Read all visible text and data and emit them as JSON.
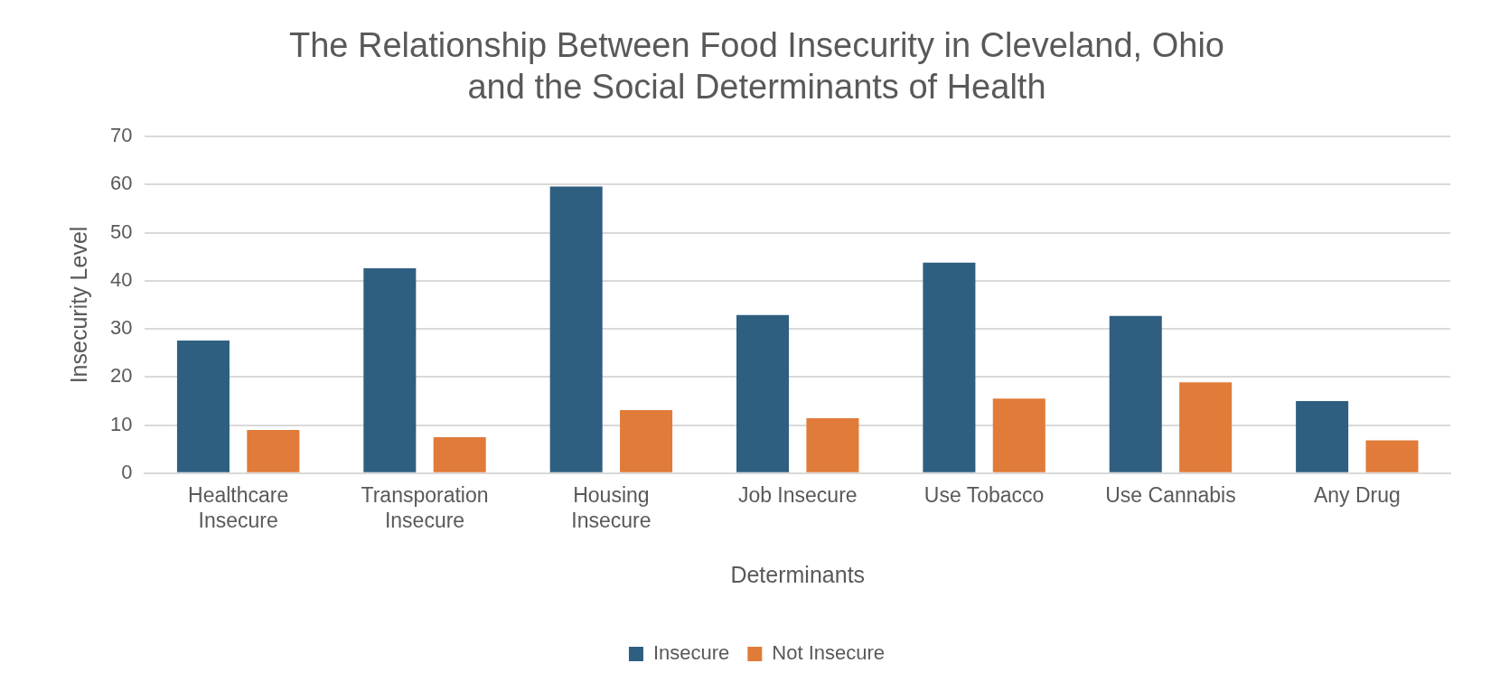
{
  "chart_data": {
    "type": "bar",
    "title": "The Relationship Between Food Insecurity in Cleveland, Ohio\nand the Social Determinants of Health",
    "xlabel": "Determinants",
    "ylabel": "Insecurity Level",
    "categories": [
      "Healthcare Insecure",
      "Transporation Insecure",
      "Housing Insecure",
      "Job Insecure",
      "Use Tobacco",
      "Use Cannabis",
      "Any Drug"
    ],
    "series": [
      {
        "name": "Insecure",
        "color": "#2e5f80",
        "values": [
          27.6,
          42.6,
          59.6,
          32.9,
          43.8,
          32.7,
          15.0
        ]
      },
      {
        "name": "Not Insecure",
        "color": "#e07b39",
        "values": [
          9.0,
          7.5,
          13.1,
          11.4,
          15.5,
          18.9,
          6.8
        ]
      }
    ],
    "ylim": [
      0,
      70
    ],
    "yticks": [
      0,
      10,
      20,
      30,
      40,
      50,
      60,
      70
    ],
    "grid": "y",
    "legend": "bottom"
  }
}
